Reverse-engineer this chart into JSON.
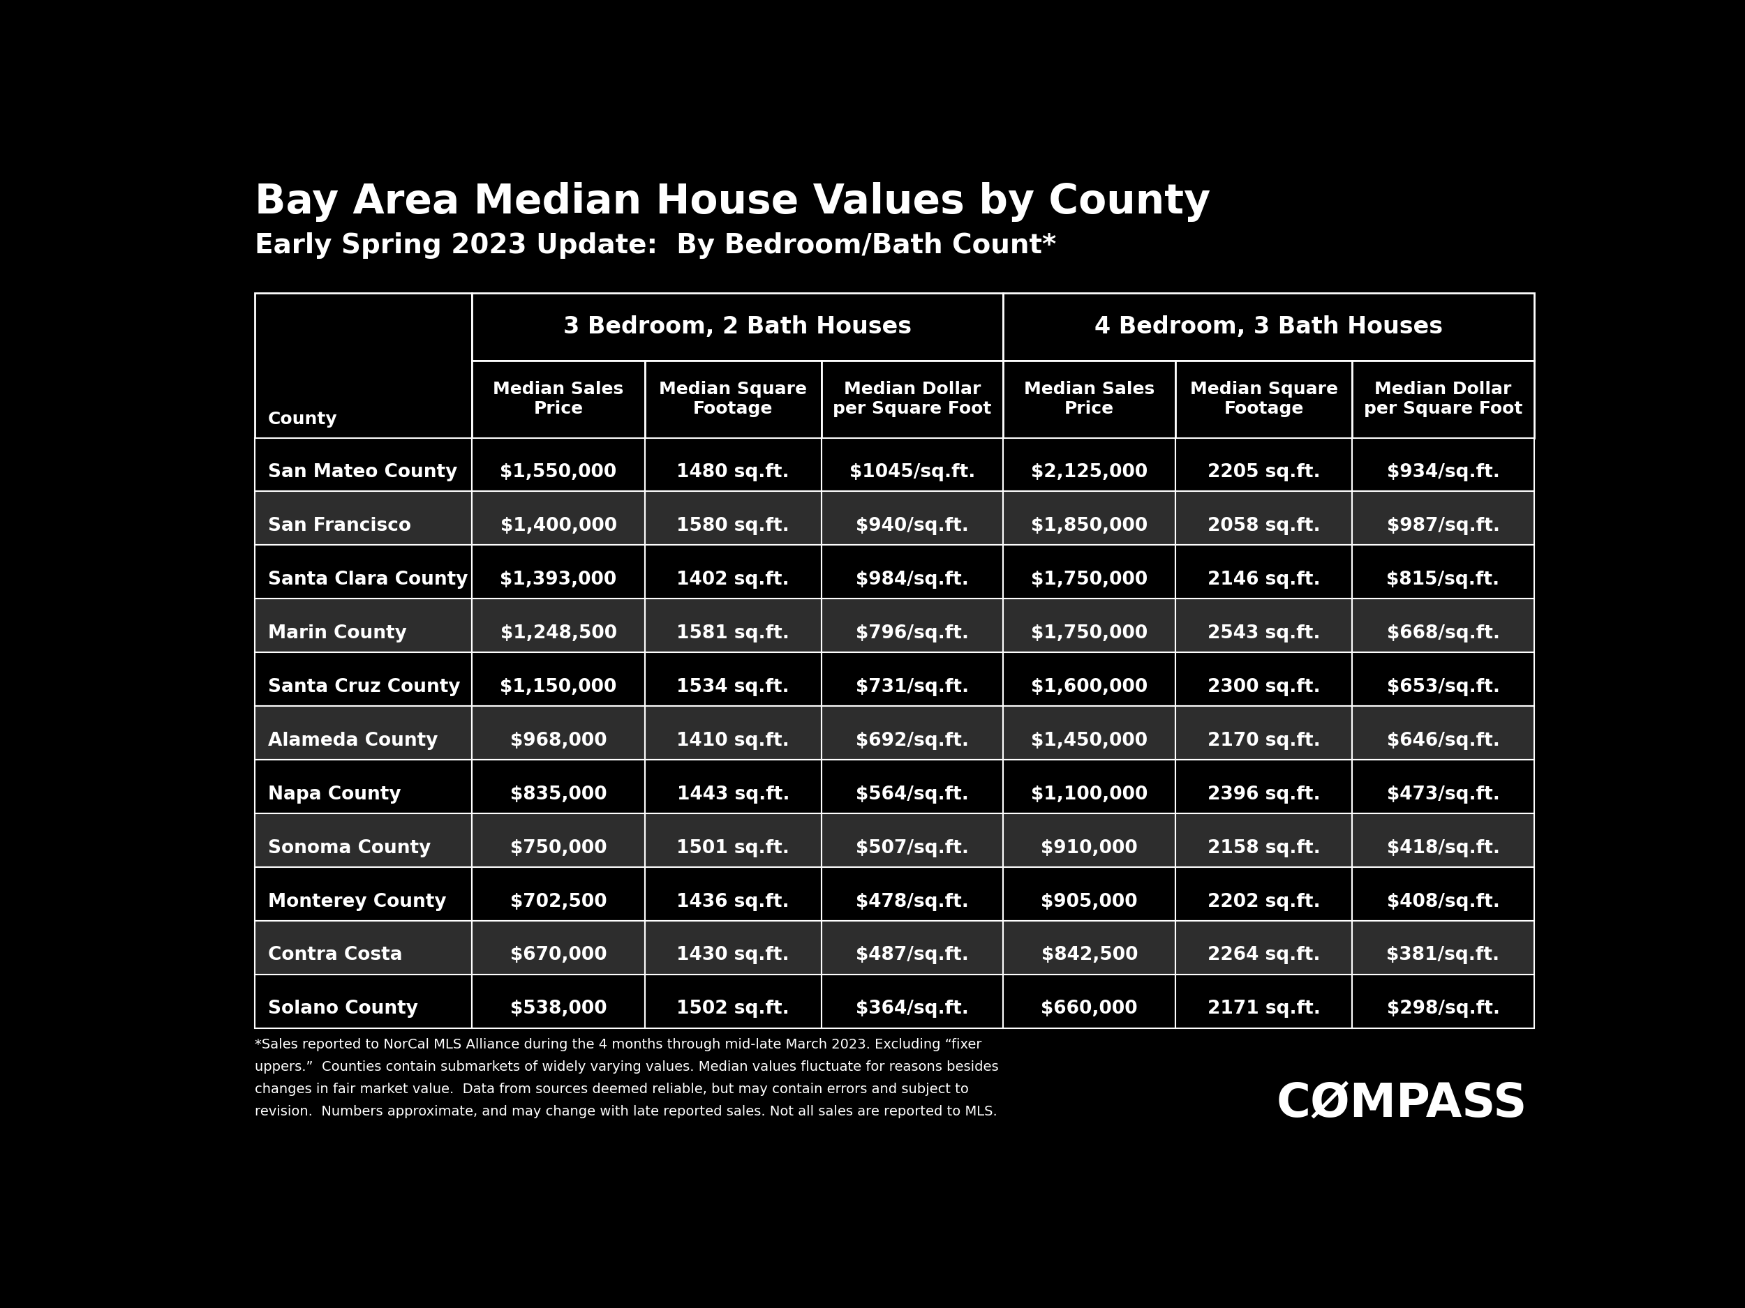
{
  "title": "Bay Area Median House Values by County",
  "subtitle": "Early Spring 2023 Update:  By Bedroom/Bath Count*",
  "bg_color": "#000000",
  "text_color": "#ffffff",
  "border_color": "#ffffff",
  "col_group1": "3 Bedroom, 2 Bath Houses",
  "col_group2": "4 Bedroom, 3 Bath Houses",
  "col_headers": [
    "County",
    "Median Sales\nPrice",
    "Median Square\nFootage",
    "Median Dollar\nper Square Foot",
    "Median Sales\nPrice",
    "Median Square\nFootage",
    "Median Dollar\nper Square Foot"
  ],
  "counties": [
    "San Mateo County",
    "San Francisco",
    "Santa Clara County",
    "Marin County",
    "Santa Cruz County",
    "Alameda County",
    "Napa County",
    "Sonoma County",
    "Monterey County",
    "Contra Costa",
    "Solano County"
  ],
  "bed3_sales": [
    "$1,550,000",
    "$1,400,000",
    "$1,393,000",
    "$1,248,500",
    "$1,150,000",
    "$968,000",
    "$835,000",
    "$750,000",
    "$702,500",
    "$670,000",
    "$538,000"
  ],
  "bed3_sqft": [
    "1480 sq.ft.",
    "1580 sq.ft.",
    "1402 sq.ft.",
    "1581 sq.ft.",
    "1534 sq.ft.",
    "1410 sq.ft.",
    "1443 sq.ft.",
    "1501 sq.ft.",
    "1436 sq.ft.",
    "1430 sq.ft.",
    "1502 sq.ft."
  ],
  "bed3_dollar": [
    "$1045/sq.ft.",
    "$940/sq.ft.",
    "$984/sq.ft.",
    "$796/sq.ft.",
    "$731/sq.ft.",
    "$692/sq.ft.",
    "$564/sq.ft.",
    "$507/sq.ft.",
    "$478/sq.ft.",
    "$487/sq.ft.",
    "$364/sq.ft."
  ],
  "bed4_sales": [
    "$2,125,000",
    "$1,850,000",
    "$1,750,000",
    "$1,750,000",
    "$1,600,000",
    "$1,450,000",
    "$1,100,000",
    "$910,000",
    "$905,000",
    "$842,500",
    "$660,000"
  ],
  "bed4_sqft": [
    "2205 sq.ft.",
    "2058 sq.ft.",
    "2146 sq.ft.",
    "2543 sq.ft.",
    "2300 sq.ft.",
    "2170 sq.ft.",
    "2396 sq.ft.",
    "2158 sq.ft.",
    "2202 sq.ft.",
    "2264 sq.ft.",
    "2171 sq.ft."
  ],
  "bed4_dollar": [
    "$934/sq.ft.",
    "$987/sq.ft.",
    "$815/sq.ft.",
    "$668/sq.ft.",
    "$653/sq.ft.",
    "$646/sq.ft.",
    "$473/sq.ft.",
    "$418/sq.ft.",
    "$408/sq.ft.",
    "$381/sq.ft.",
    "$298/sq.ft."
  ],
  "row_alt_color": "#2d2d2d",
  "footnote_line1": "*Sales reported to NorCal MLS Alliance during the 4 months through mid-late March 2023. Excluding “fixer",
  "footnote_line2": "uppers.”  Counties contain submarkets of widely varying values. Median values fluctuate for reasons besides",
  "footnote_line3": "changes in fair market value.  Data from sources deemed reliable, but may contain errors and subject to",
  "footnote_line4": "revision.  Numbers approximate, and may change with late reported sales. Not all sales are reported to MLS.",
  "compass_text": "CØMPASS",
  "title_fontsize": 42,
  "subtitle_fontsize": 28,
  "group_header_fontsize": 24,
  "col_header_fontsize": 18,
  "data_fontsize": 19,
  "county_fontsize": 19,
  "footnote_fontsize": 14,
  "compass_fontsize": 48
}
